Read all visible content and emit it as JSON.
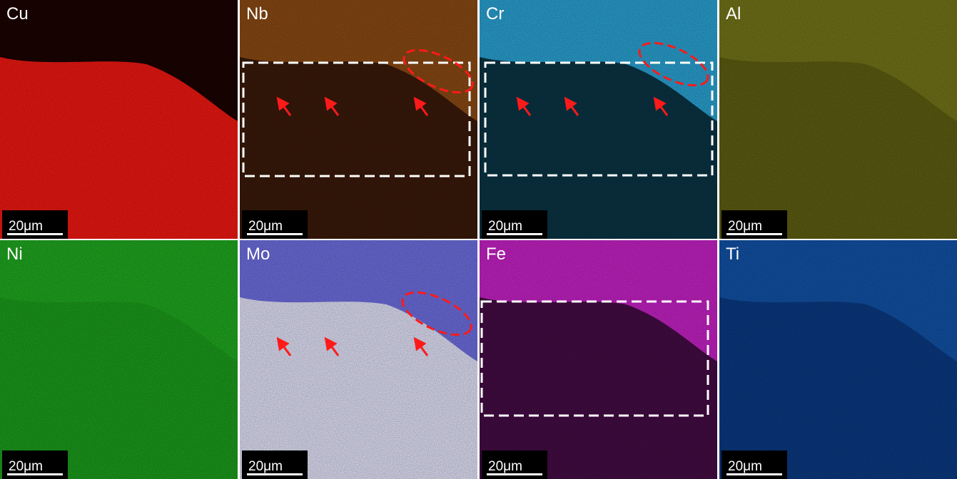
{
  "panels": [
    {
      "label": "Cu",
      "scale_bar": "20μm"
    },
    {
      "label": "Nb",
      "scale_bar": "20μm"
    },
    {
      "label": "Cr",
      "scale_bar": "20μm"
    },
    {
      "label": "Al",
      "scale_bar": "20μm"
    },
    {
      "label": "Ni",
      "scale_bar": "20μm"
    },
    {
      "label": "Mo",
      "scale_bar": "20μm"
    },
    {
      "label": "Fe",
      "scale_bar": "20μm"
    },
    {
      "label": "Ti",
      "scale_bar": "20μm"
    }
  ]
}
